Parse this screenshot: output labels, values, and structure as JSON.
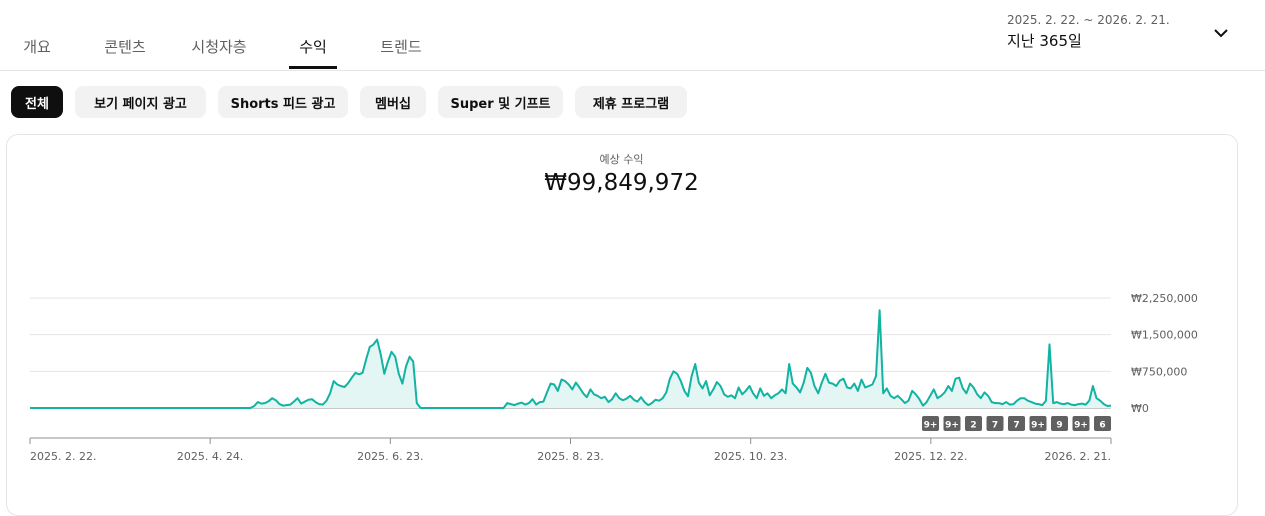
{
  "tabs": [
    {
      "label": "개요",
      "active": false
    },
    {
      "label": "콘텐츠",
      "active": false
    },
    {
      "label": "시청자층",
      "active": false
    },
    {
      "label": "수익",
      "active": true
    },
    {
      "label": "트렌드",
      "active": false
    }
  ],
  "date_range": {
    "dates": "2025. 2. 22. ~ 2026. 2. 21.",
    "label": "지난 365일",
    "dropdown_icon": "chevron-down-icon"
  },
  "filters": [
    {
      "label": "전체",
      "active": true
    },
    {
      "label": "보기 페이지 광고",
      "active": false
    },
    {
      "label": "Shorts 피드 광고",
      "active": false
    },
    {
      "label": "멤버십",
      "active": false
    },
    {
      "label": "Super 및 기프트",
      "active": false
    },
    {
      "label": "제휴 프로그램",
      "active": false
    }
  ],
  "metric": {
    "label": "예상 수익",
    "value": "₩99,849,972"
  },
  "colors": {
    "line": "#12b3a2",
    "area": "#e3f6f4",
    "active_chip": "#0f0f0f",
    "chip": "#f2f2f2",
    "badge": "#606060"
  },
  "chart_data": {
    "type": "area",
    "title": "",
    "xlabel": "",
    "ylabel": "",
    "x_start": "2025-02-22",
    "x_end": "2026-02-21",
    "x_ticks": [
      "2025. 2. 22.",
      "2025. 4. 24.",
      "2025. 6. 23.",
      "2025. 8. 23.",
      "2025. 10. 23.",
      "2025. 12. 22.",
      "2026. 2. 21."
    ],
    "y_ticks": [
      "₩2,250,000",
      "₩1,500,000",
      "₩750,000",
      "₩0"
    ],
    "ylim": [
      0,
      2250000
    ],
    "grid": true,
    "series": [
      {
        "values": [
          0,
          0,
          0,
          0,
          0,
          0,
          0,
          0,
          0,
          0,
          0,
          0,
          0,
          0,
          0,
          0,
          0,
          0,
          0,
          0,
          0,
          0,
          0,
          0,
          0,
          0,
          0,
          0,
          0,
          0,
          0,
          0,
          0,
          0,
          0,
          0,
          0,
          0,
          0,
          0,
          0,
          0,
          0,
          0,
          0,
          0,
          0,
          0,
          0,
          0,
          0,
          0,
          0,
          0,
          0,
          0,
          0,
          0,
          0,
          0,
          0,
          0,
          40000,
          120000,
          90000,
          100000,
          140000,
          200000,
          160000,
          80000,
          50000,
          60000,
          70000,
          130000,
          200000,
          90000,
          130000,
          170000,
          180000,
          120000,
          80000,
          70000,
          150000,
          300000,
          550000,
          480000,
          450000,
          430000,
          510000,
          620000,
          720000,
          690000,
          720000,
          1000000,
          1250000,
          1300000,
          1400000,
          1100000,
          700000,
          950000,
          1150000,
          1050000,
          700000,
          500000,
          850000,
          1050000,
          950000,
          100000,
          0,
          0,
          0,
          0,
          0,
          0,
          0,
          0,
          0,
          0,
          0,
          0,
          0,
          0,
          0,
          0,
          0,
          0,
          0,
          0,
          0,
          0,
          0,
          0,
          100000,
          80000,
          60000,
          90000,
          110000,
          70000,
          100000,
          180000,
          70000,
          120000,
          130000,
          320000,
          500000,
          480000,
          350000,
          580000,
          550000,
          480000,
          380000,
          520000,
          420000,
          300000,
          220000,
          380000,
          280000,
          250000,
          200000,
          230000,
          120000,
          180000,
          300000,
          200000,
          160000,
          190000,
          250000,
          170000,
          130000,
          220000,
          120000,
          60000,
          100000,
          170000,
          150000,
          200000,
          320000,
          600000,
          750000,
          700000,
          550000,
          350000,
          240000,
          650000,
          900000,
          520000,
          400000,
          550000,
          260000,
          380000,
          530000,
          450000,
          280000,
          230000,
          260000,
          200000,
          420000,
          280000,
          350000,
          450000,
          300000,
          200000,
          400000,
          250000,
          300000,
          200000,
          260000,
          300000,
          380000,
          300000,
          900000,
          500000,
          420000,
          320000,
          520000,
          820000,
          720000,
          450000,
          300000,
          520000,
          700000,
          520000,
          500000,
          450000,
          560000,
          600000,
          420000,
          400000,
          500000,
          350000,
          580000,
          420000,
          450000,
          480000,
          650000,
          2000000,
          300000,
          400000,
          250000,
          200000,
          250000,
          180000,
          100000,
          150000,
          350000,
          280000,
          180000,
          50000,
          120000,
          250000,
          380000,
          200000,
          250000,
          320000,
          450000,
          350000,
          600000,
          620000,
          400000,
          300000,
          500000,
          420000,
          280000,
          200000,
          320000,
          250000,
          120000,
          100000,
          100000,
          80000,
          120000,
          70000,
          80000,
          150000,
          200000,
          200000,
          150000,
          120000,
          90000,
          80000,
          60000,
          150000,
          1300000,
          100000,
          120000,
          90000,
          80000,
          100000,
          70000,
          60000,
          80000,
          90000,
          70000,
          150000,
          450000,
          200000,
          150000,
          80000,
          40000,
          50000
        ]
      }
    ],
    "event_badges": [
      "9+",
      "9+",
      "2",
      "7",
      "7",
      "9+",
      "9",
      "9+",
      "6"
    ]
  }
}
